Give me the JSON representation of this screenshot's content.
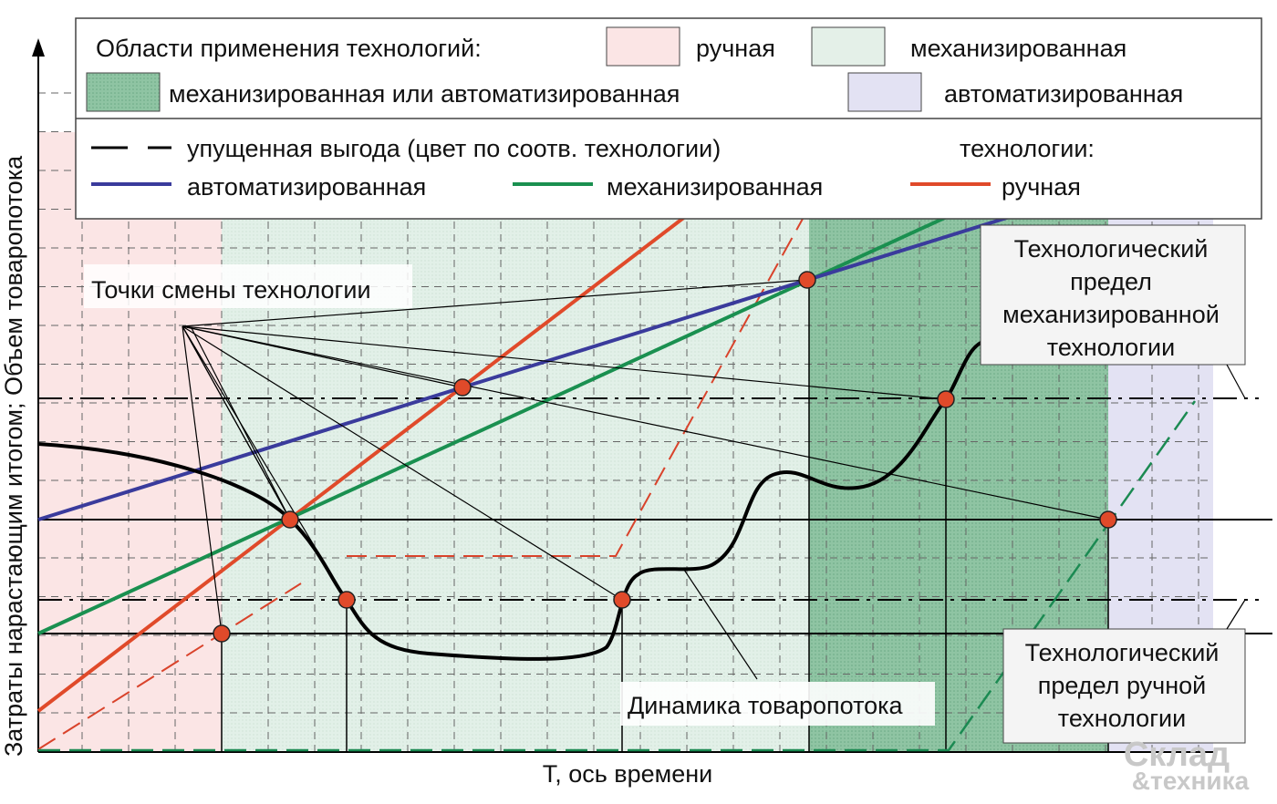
{
  "legend": {
    "areas_title": "Области применения технологий:",
    "area_manual": "ручная",
    "area_mechanized": "механизированная",
    "area_mech_or_auto": "механизированная или  автоматизированная",
    "area_auto": "автоматизированная",
    "lost_profit": "упущенная выгода (цвет по соотв. технологии)",
    "tech_title": "технологии:",
    "line_auto": "автоматизированная",
    "line_mech": "механизированная",
    "line_manual": "ручная"
  },
  "labels": {
    "switch_points": "Точки смены технологии",
    "flow_dynamics": "Динамика товаропотока",
    "mech_limit": [
      "Технологический",
      "предел",
      "механизированной",
      "технологии"
    ],
    "manual_limit": [
      "Технологический",
      "предел ручной",
      "технологии"
    ]
  },
  "axes": {
    "y": "Затраты нарастающим итогом; Объем товаропотока",
    "x": "Т, ось времени"
  },
  "watermark": [
    "Склад",
    "&техника"
  ]
}
